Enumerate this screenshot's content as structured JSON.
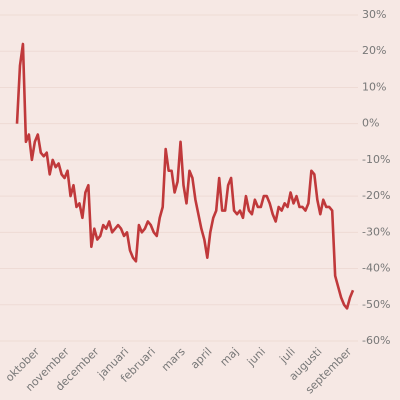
{
  "chart_data": {
    "type": "line",
    "categories": [
      null,
      null,
      null,
      null,
      null,
      null,
      null,
      "oktober",
      null,
      null,
      null,
      null,
      null,
      null,
      null,
      null,
      null,
      "november",
      null,
      null,
      null,
      null,
      null,
      null,
      null,
      null,
      null,
      "december",
      null,
      null,
      null,
      null,
      null,
      null,
      null,
      null,
      null,
      "januari",
      null,
      null,
      null,
      null,
      null,
      null,
      null,
      null,
      "februari",
      null,
      null,
      null,
      null,
      null,
      null,
      null,
      null,
      null,
      "mars",
      null,
      null,
      null,
      null,
      null,
      null,
      null,
      null,
      "april",
      null,
      null,
      null,
      null,
      null,
      null,
      null,
      null,
      "maj",
      null,
      null,
      null,
      null,
      null,
      null,
      null,
      null,
      "juni",
      null,
      null,
      null,
      null,
      null,
      null,
      null,
      null,
      null,
      "juli",
      null,
      null,
      null,
      null,
      null,
      null,
      null,
      null,
      "augusti",
      null,
      null,
      null,
      null,
      null,
      null,
      null,
      null,
      null,
      "september",
      null
    ],
    "values": [
      0,
      16,
      22,
      -5,
      -3,
      -10,
      -5,
      -3,
      -8,
      -9,
      -8,
      -14,
      -10,
      -12,
      -11,
      -14,
      -15,
      -13,
      -20,
      -17,
      -23,
      -22,
      -26,
      -19,
      -17,
      -34,
      -29,
      -32,
      -31,
      -28,
      -29,
      -27,
      -30,
      -29,
      -28,
      -29,
      -31,
      -30,
      -35,
      -37,
      -38,
      -28,
      -30,
      -29,
      -27,
      -28,
      -30,
      -31,
      -26,
      -23,
      -7,
      -13,
      -13,
      -19,
      -16,
      -5,
      -17,
      -22,
      -13,
      -15,
      -21,
      -25,
      -29,
      -32,
      -37,
      -30,
      -26,
      -24,
      -15,
      -24,
      -24,
      -17,
      -15,
      -24,
      -25,
      -24,
      -26,
      -20,
      -24,
      -25,
      -21,
      -23,
      -23,
      -20,
      -20,
      -22,
      -25,
      -27,
      -23,
      -24,
      -22,
      -23,
      -19,
      -22,
      -20,
      -23,
      -23,
      -24,
      -22,
      -13,
      -14,
      -21,
      -25,
      -21,
      -23,
      -23,
      -24,
      -42,
      -45,
      -48,
      -50,
      -51,
      -48,
      -46
    ],
    "color": "#c0393b",
    "ylim": [
      -60,
      30
    ],
    "yticks": [
      {
        "value": -60,
        "label": "-60%"
      },
      {
        "value": -50,
        "label": "-50%"
      },
      {
        "value": -40,
        "label": "-40%"
      },
      {
        "value": -30,
        "label": "-30%"
      },
      {
        "value": -20,
        "label": "-20%"
      },
      {
        "value": -10,
        "label": "-10%"
      },
      {
        "value": 0,
        "label": "0%"
      },
      {
        "value": 10,
        "label": "10%"
      },
      {
        "value": 20,
        "label": "20%"
      },
      {
        "value": 30,
        "label": "30%"
      }
    ],
    "grid": true
  }
}
